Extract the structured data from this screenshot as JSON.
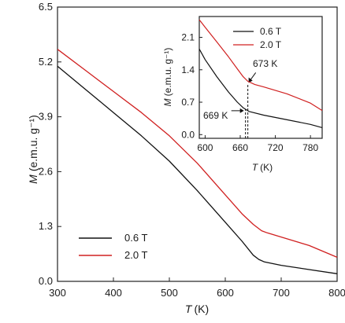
{
  "chart_data": [
    {
      "type": "line",
      "title": "",
      "xlabel_var": "T",
      "xlabel_unit": "(K)",
      "ylabel_var": "M",
      "ylabel_unit": "(e.m.u. g⁻¹)",
      "xlim": [
        300,
        800
      ],
      "ylim": [
        0.0,
        6.5
      ],
      "xticks": [
        "300",
        "400",
        "500",
        "600",
        "700",
        "800"
      ],
      "yticks": [
        "0.0",
        "1.3",
        "2.6",
        "3.9",
        "5.2",
        "6.5"
      ],
      "legend_position": "bottom-left",
      "series": [
        {
          "name": "0.6 T",
          "color": "#111111",
          "x": [
            300,
            350,
            400,
            450,
            500,
            550,
            600,
            630,
            650,
            660,
            670,
            700,
            750,
            800
          ],
          "y": [
            5.1,
            4.55,
            4.0,
            3.45,
            2.85,
            2.15,
            1.4,
            0.95,
            0.62,
            0.52,
            0.46,
            0.38,
            0.28,
            0.18
          ]
        },
        {
          "name": "2.0 T",
          "color": "#d02020",
          "x": [
            300,
            350,
            400,
            450,
            500,
            550,
            600,
            630,
            650,
            665,
            675,
            700,
            750,
            800
          ],
          "y": [
            5.5,
            5.0,
            4.5,
            4.0,
            3.45,
            2.8,
            2.05,
            1.6,
            1.35,
            1.2,
            1.15,
            1.05,
            0.85,
            0.57
          ]
        }
      ]
    },
    {
      "type": "line",
      "title": "",
      "inset": true,
      "xlabel_var": "T",
      "xlabel_unit": "(K)",
      "ylabel_var": "M",
      "ylabel_unit": "(e.m.u. g⁻¹)",
      "xlim": [
        590,
        800
      ],
      "ylim": [
        -0.08,
        2.55
      ],
      "xticks": [
        "600",
        "660",
        "720",
        "780"
      ],
      "yticks": [
        "0.0",
        "0.7",
        "1.4",
        "2.1"
      ],
      "legend_position": "top-right",
      "annotations": [
        {
          "text": "669 K",
          "x": 669,
          "y_line_top": 0.55
        },
        {
          "text": "673 K",
          "x": 673,
          "y_line_top": 1.1
        }
      ],
      "series": [
        {
          "name": "0.6 T",
          "color": "#111111",
          "x": [
            590,
            600,
            620,
            640,
            655,
            665,
            675,
            700,
            740,
            780,
            800
          ],
          "y": [
            1.85,
            1.62,
            1.25,
            0.92,
            0.7,
            0.58,
            0.5,
            0.42,
            0.32,
            0.22,
            0.15
          ]
        },
        {
          "name": "2.0 T",
          "color": "#d02020",
          "x": [
            590,
            600,
            620,
            640,
            655,
            665,
            673,
            685,
            700,
            740,
            780,
            800
          ],
          "y": [
            2.48,
            2.32,
            2.0,
            1.68,
            1.42,
            1.25,
            1.15,
            1.08,
            1.03,
            0.88,
            0.68,
            0.52
          ]
        }
      ]
    }
  ]
}
